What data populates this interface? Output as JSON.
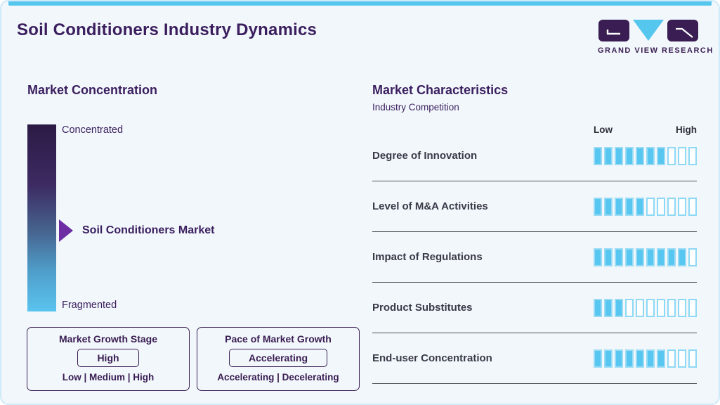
{
  "page": {
    "title": "Soil Conditioners Industry Dynamics"
  },
  "logo": {
    "brand": "GRAND VIEW RESEARCH"
  },
  "market_concentration": {
    "heading": "Market Concentration",
    "scale_top": "Concentrated",
    "scale_bottom": "Fragmented",
    "marker_label": "Soil Conditioners Market",
    "growth_stage": {
      "title": "Market Growth Stage",
      "value": "High",
      "options": "Low | Medium | High"
    },
    "growth_pace": {
      "title": "Pace of Market Growth",
      "value": "Accelerating",
      "options": "Accelerating | Decelerating"
    }
  },
  "market_characteristics": {
    "heading": "Market Characteristics",
    "subheading": "Industry Competition",
    "scale_low": "Low",
    "scale_high": "High",
    "total_ticks": 10,
    "rows": [
      {
        "label": "Degree of Innovation",
        "value": 7
      },
      {
        "label": "Level of M&A Activities",
        "value": 5
      },
      {
        "label": "Impact of Regulations",
        "value": 9
      },
      {
        "label": "Product Substitutes",
        "value": 3
      },
      {
        "label": "End-user Concentration",
        "value": 7
      }
    ]
  },
  "chart_data": {
    "type": "bar",
    "title": "Market Characteristics — Industry Competition",
    "categories": [
      "Degree of Innovation",
      "Level of M&A Activities",
      "Impact of Regulations",
      "Product Substitutes",
      "End-user Concentration"
    ],
    "values": [
      7,
      5,
      9,
      3,
      7
    ],
    "value_scale": {
      "min": 0,
      "max": 10,
      "min_label": "Low",
      "max_label": "High"
    },
    "legend": "off",
    "companion_diagram": {
      "scale": [
        "Concentrated",
        "Fragmented"
      ],
      "marker": "Soil Conditioners Market",
      "marker_position": "upper-middle of scale",
      "market_growth_stage": "High",
      "pace_of_market_growth": "Accelerating"
    }
  },
  "colors": {
    "accent_cyan": "#55c6ed",
    "deep_purple": "#3a1d52",
    "title_purple": "#3b1e5e",
    "marker_purple": "#6d2ea4",
    "tick_fill": "#57c6f0",
    "tick_outline": "#8ed9f5",
    "bg": "#f1f7fb",
    "divider": "#52525c",
    "text_dark": "#3a3a48",
    "grad_top": "#2c1a45",
    "grad_bottom": "#5ac4ef"
  }
}
